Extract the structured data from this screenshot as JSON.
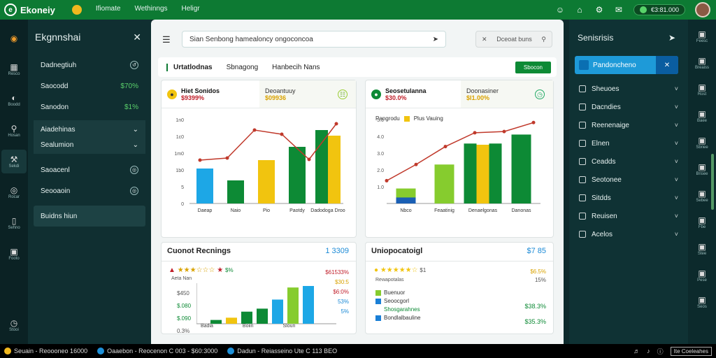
{
  "topbar": {
    "app_name": "Ekoneiy",
    "nav": [
      "Ifiomate",
      "Wethinngs",
      "Heligr"
    ],
    "status_pill": "€3:81.000",
    "icons": [
      "user-icon",
      "home-icon",
      "settings-icon",
      "mail-icon"
    ]
  },
  "left_rail": [
    {
      "label": "Resco",
      "icon": "grid-icon"
    },
    {
      "label": "Boodd",
      "icon": "gauge-icon"
    },
    {
      "label": "Hosan",
      "icon": "pin-icon"
    },
    {
      "label": "Sekdi",
      "icon": "tools-icon"
    },
    {
      "label": "Rocar",
      "icon": "camera-icon"
    },
    {
      "label": "Sehno",
      "icon": "card-icon"
    },
    {
      "label": "Footo",
      "icon": "box-icon"
    },
    {
      "label": "Stooi",
      "icon": "clock-icon"
    }
  ],
  "left_panel": {
    "title": "Ekgnnshai",
    "items": [
      {
        "label": "Dadnegtiuh",
        "value": ""
      },
      {
        "label": "Saocodd",
        "value": "$70%"
      },
      {
        "label": "Sanodon",
        "value": "$1%"
      }
    ],
    "group": [
      "Aiadehinas",
      "Sealumion"
    ],
    "items2": [
      {
        "label": "Saoacenl"
      },
      {
        "label": "Seooaoin"
      }
    ],
    "footer": "Buidns hiun"
  },
  "main": {
    "search_placeholder": "Sian Senbong hamealoncy ongoconcoa",
    "search2_placeholder": "Dceoat buns",
    "tabs": [
      "Urtatlodnas",
      "Sbnagong",
      "Hanbecih Nans"
    ],
    "tab_button": "Sbocon",
    "card1": {
      "kpi1_label": "Hiet Sonidos",
      "kpi1_value": "$9399%",
      "kpi2_label": "Deoantuuy",
      "kpi2_value": "$09936"
    },
    "card2": {
      "kpi1_label": "Seosetulanna",
      "kpi1_value": "$30.0%",
      "kpi2_label": "Doonasiner",
      "kpi2_value": "$I1.00%",
      "legend": [
        "Pangrodu",
        "Plus Vauing"
      ]
    },
    "card3": {
      "title": "Cuonot Recnings",
      "value": "1 3309",
      "stars_text": "$%",
      "side_values": [
        "$61533%",
        "$30:5",
        "$6:0%",
        "53%",
        "5%"
      ],
      "sub": "Aeta Nan",
      "left_values": [
        "$450",
        "$.080",
        "$.090",
        "0.3%"
      ],
      "x_labels": [
        "Badia",
        "Boiin",
        "Sloun"
      ]
    },
    "card4": {
      "title": "Uniopocatoigl",
      "value": "$7 85",
      "stars_text": "$1",
      "sub": "Rewapotalas",
      "right_top": [
        "$6.5%",
        "15%"
      ],
      "legend": [
        {
          "label": "Buenuor",
          "color": "#86cc2e"
        },
        {
          "label": "Seoocgorl",
          "color": "#1a7fd6"
        },
        {
          "label": "Shosgarahnes",
          "color": "#0d8a35"
        },
        {
          "label": "Bondlalbauline",
          "color": "#1a7fd6"
        }
      ],
      "values": [
        "$38.3%",
        "$35.3%"
      ]
    }
  },
  "chart_data": [
    {
      "type": "bar",
      "categories": [
        "Daeap",
        "Naio",
        "Pio",
        "Paotdy",
        "Dadodoga Droo"
      ],
      "series": [
        {
          "values": [
            5.0,
            3.3,
            6.2,
            8.1,
            10.5
          ],
          "color": "#1da7e6"
        },
        {
          "values": [
            0,
            0,
            0,
            0,
            9.7
          ],
          "color": "#f1c40f"
        }
      ],
      "line": [
        6.2,
        6.5,
        10.5,
        9.9,
        6.3,
        11.4
      ],
      "yticks": [
        "0",
        "5",
        "1b0",
        "1m0",
        "1c0",
        "1n0"
      ],
      "ylim": [
        0,
        12
      ]
    },
    {
      "type": "bar",
      "categories": [
        "Nbco",
        "Feaatinig",
        "Denaelgonas",
        "Danonas"
      ],
      "series": [
        {
          "values": [
            2.5,
            6.5,
            10.0,
            11.5
          ]
        },
        {
          "values": [
            1.0,
            0,
            9.8,
            0
          ]
        }
      ],
      "line": [
        3.8,
        6.5,
        9.5,
        11.8,
        12.0,
        13.5
      ],
      "yticks": [
        "1.0",
        "2.0",
        "3.0",
        "4.0",
        "5.0"
      ],
      "ylim": [
        0,
        14
      ]
    },
    {
      "type": "bar",
      "series": [
        {
          "values": [
            0.5,
            0.8,
            1.6,
            2.0,
            3.2,
            4.8,
            5.0
          ]
        }
      ]
    }
  ],
  "right_panel": {
    "title": "Senisrisis",
    "active": "Pandoncheno",
    "items": [
      "Sheuoes",
      "Dacndies",
      "Reenenaige",
      "Elnen",
      "Ceadds",
      "Seotonee",
      "Sitdds",
      "Reuisen",
      "Acelos"
    ]
  },
  "right_rail": [
    "Feesc",
    "Breaiss",
    "Rost",
    "Baee",
    "Sbriee",
    "Bnsee",
    "Sebee",
    "Fbe",
    "Stee",
    "Pese",
    "Seos"
  ],
  "statusbar": {
    "seg1": "Seuain - Reoooneo 16000",
    "seg2": "Oaaebon - Reocenon C 003 - $60:3000",
    "seg3": "Dadun - Reiasseino Ute C 113 BEO",
    "right_box": "Ite Coeleahes"
  }
}
